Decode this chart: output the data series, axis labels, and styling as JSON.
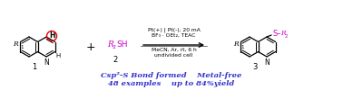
{
  "background_color": "#ffffff",
  "text_color_black": "#000000",
  "text_color_blue": "#3333cc",
  "text_color_purple": "#cc00cc",
  "text_color_red": "#dd0000",
  "conditions_line1": "Pt(+) | Pt(-), 20 mA",
  "conditions_line2": "BF₃ · OEt₂, TEAC",
  "conditions_line3": "MeCN, Ar, rt, 6 h",
  "conditions_line4": "undivided cell",
  "bottom_line1": "Csp²-S Bond formed    Metal-free",
  "bottom_line2": "48 examples    up to 84%yield",
  "label1": "1",
  "label2": "2",
  "label3": "3",
  "figsize": [
    3.78,
    1.0
  ],
  "dpi": 100
}
